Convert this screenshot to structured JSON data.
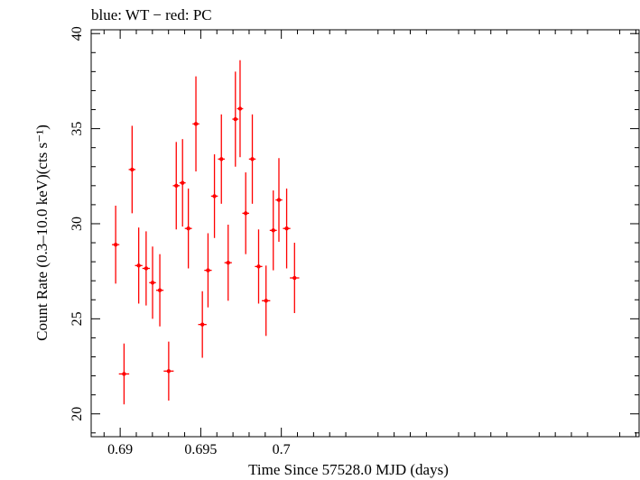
{
  "chart_data": {
    "type": "scatter",
    "title": "blue: WT − red: PC",
    "xlabel": "Time Since 57528.0 MJD (days)",
    "ylabel": "Count Rate (0.3–10.0 keV)(cts s⁻¹)",
    "xlim": [
      0.6882,
      0.7222
    ],
    "ylim": [
      18.8,
      40.2
    ],
    "xticks": [
      0.69,
      0.695,
      0.7
    ],
    "xtick_labels": [
      "0.69",
      "0.695",
      "0.7"
    ],
    "yticks": [
      20,
      25,
      30,
      35,
      40
    ],
    "ytick_labels": [
      "20",
      "25",
      "30",
      "35",
      "40"
    ],
    "grid": false,
    "series": [
      {
        "color": "#ff0000",
        "points": [
          {
            "x": 0.68972,
            "y": 28.9,
            "xerr": 0.00023,
            "yerr": 2.05
          },
          {
            "x": 0.69024,
            "y": 22.1,
            "xerr": 0.00032,
            "yerr": 1.6
          },
          {
            "x": 0.69074,
            "y": 32.85,
            "xerr": 0.00021,
            "yerr": 2.3
          },
          {
            "x": 0.69115,
            "y": 27.8,
            "xerr": 0.00023,
            "yerr": 2.0
          },
          {
            "x": 0.69161,
            "y": 27.65,
            "xerr": 0.00023,
            "yerr": 1.95
          },
          {
            "x": 0.69201,
            "y": 26.9,
            "xerr": 0.00021,
            "yerr": 1.9
          },
          {
            "x": 0.69246,
            "y": 26.5,
            "xerr": 0.00023,
            "yerr": 1.9
          },
          {
            "x": 0.69301,
            "y": 22.25,
            "xerr": 0.00031,
            "yerr": 1.55
          },
          {
            "x": 0.69348,
            "y": 32.0,
            "xerr": 0.00021,
            "yerr": 2.3
          },
          {
            "x": 0.69387,
            "y": 32.15,
            "xerr": 0.00019,
            "yerr": 2.3
          },
          {
            "x": 0.69423,
            "y": 29.75,
            "xerr": 0.00022,
            "yerr": 2.1
          },
          {
            "x": 0.6947,
            "y": 35.25,
            "xerr": 0.00021,
            "yerr": 2.5
          },
          {
            "x": 0.6951,
            "y": 24.7,
            "xerr": 0.00026,
            "yerr": 1.75
          },
          {
            "x": 0.69545,
            "y": 27.55,
            "xerr": 0.00023,
            "yerr": 1.95
          },
          {
            "x": 0.69585,
            "y": 31.45,
            "xerr": 0.00021,
            "yerr": 2.2
          },
          {
            "x": 0.69628,
            "y": 33.4,
            "xerr": 0.00021,
            "yerr": 2.35
          },
          {
            "x": 0.6967,
            "y": 27.95,
            "xerr": 0.00023,
            "yerr": 2.0
          },
          {
            "x": 0.69715,
            "y": 35.5,
            "xerr": 0.00019,
            "yerr": 2.5
          },
          {
            "x": 0.69744,
            "y": 36.05,
            "xerr": 0.00019,
            "yerr": 2.55
          },
          {
            "x": 0.69779,
            "y": 30.55,
            "xerr": 0.00021,
            "yerr": 2.15
          },
          {
            "x": 0.6982,
            "y": 33.4,
            "xerr": 0.00021,
            "yerr": 2.35
          },
          {
            "x": 0.69859,
            "y": 27.75,
            "xerr": 0.00023,
            "yerr": 1.95
          },
          {
            "x": 0.69905,
            "y": 25.95,
            "xerr": 0.00026,
            "yerr": 1.85
          },
          {
            "x": 0.6995,
            "y": 29.65,
            "xerr": 0.00022,
            "yerr": 2.1
          },
          {
            "x": 0.69985,
            "y": 31.25,
            "xerr": 0.00021,
            "yerr": 2.2
          },
          {
            "x": 0.70033,
            "y": 29.75,
            "xerr": 0.00023,
            "yerr": 2.1
          },
          {
            "x": 0.70082,
            "y": 27.15,
            "xerr": 0.00029,
            "yerr": 1.85
          }
        ]
      }
    ]
  }
}
